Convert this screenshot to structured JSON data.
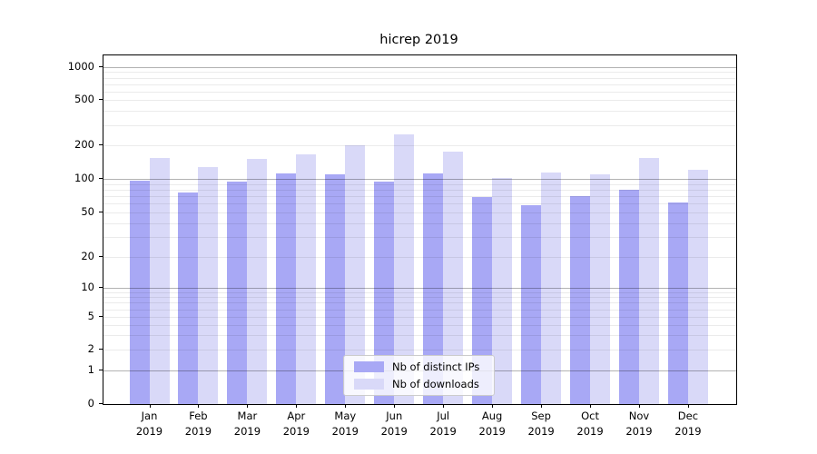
{
  "title": "hicrep 2019",
  "chart_data": {
    "type": "bar",
    "title": "hicrep 2019",
    "categories": [
      "Jan 2019",
      "Feb 2019",
      "Mar 2019",
      "Apr 2019",
      "May 2019",
      "Jun 2019",
      "Jul 2019",
      "Aug 2019",
      "Sep 2019",
      "Oct 2019",
      "Nov 2019",
      "Dec 2019"
    ],
    "x_tick_line1": [
      "Jan",
      "Feb",
      "Mar",
      "Apr",
      "May",
      "Jun",
      "Jul",
      "Aug",
      "Sep",
      "Oct",
      "Nov",
      "Dec"
    ],
    "x_tick_line2": [
      "2019",
      "2019",
      "2019",
      "2019",
      "2019",
      "2019",
      "2019",
      "2019",
      "2019",
      "2019",
      "2019",
      "2019"
    ],
    "series": [
      {
        "name": "Nb of distinct IPs",
        "color": "#a8a8f5",
        "values": [
          97,
          76,
          95,
          111,
          110,
          94,
          112,
          69,
          58,
          70,
          80,
          62
        ]
      },
      {
        "name": "Nb of downloads",
        "color": "#d9d9f8",
        "values": [
          153,
          127,
          152,
          167,
          200,
          250,
          177,
          101,
          114,
          109,
          153,
          120
        ]
      }
    ],
    "yticks": [
      0,
      1,
      2,
      5,
      10,
      20,
      50,
      100,
      200,
      500,
      1000
    ],
    "yscale": "symlog",
    "ylim": [
      0,
      1280
    ],
    "xlabel": "",
    "ylabel": "",
    "grid": "horizontal",
    "legend_position": "lower center"
  }
}
